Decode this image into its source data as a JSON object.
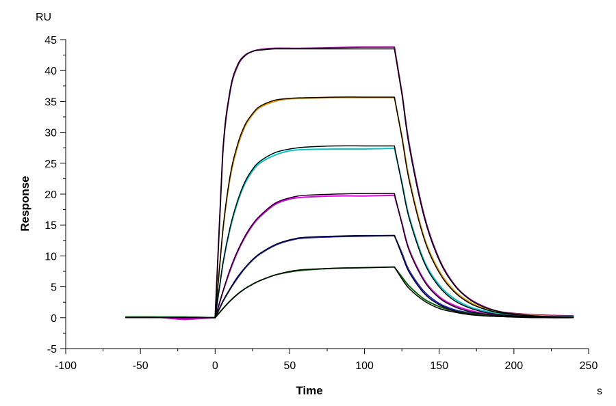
{
  "chart_data": {
    "type": "line",
    "xlabel": "Time",
    "ylabel": "Response",
    "x_unit": "s",
    "y_unit": "RU",
    "xlim": [
      -100,
      250
    ],
    "ylim": [
      -5,
      45
    ],
    "x_ticks": [
      -100,
      -50,
      0,
      50,
      100,
      150,
      200,
      250
    ],
    "y_ticks": [
      -5,
      0,
      5,
      10,
      15,
      20,
      25,
      30,
      35,
      40,
      45
    ],
    "x_tick_labels": [
      "-100",
      "-50",
      "0",
      "50",
      "100",
      "150",
      "200",
      "250"
    ],
    "y_tick_labels": [
      "-5",
      "0",
      "5",
      "10",
      "15",
      "20",
      "25",
      "30",
      "35",
      "40",
      "45"
    ],
    "grid": false,
    "legend": "none",
    "x": [
      -60,
      -40,
      -20,
      0,
      5,
      10,
      15,
      20,
      25,
      30,
      40,
      50,
      60,
      80,
      100,
      120,
      125,
      130,
      140,
      150,
      160,
      170,
      180,
      190,
      200,
      220,
      240
    ],
    "series": [
      {
        "color": "#8b008b",
        "values": [
          0.1,
          0.1,
          -0.2,
          0,
          26,
          36.5,
          40.7,
          42.4,
          43.1,
          43.4,
          43.6,
          43.6,
          43.6,
          43.7,
          43.8,
          43.8,
          36.5,
          28,
          16.5,
          9.5,
          5.4,
          3.1,
          1.8,
          1.0,
          0.7,
          0.4,
          0.3
        ]
      },
      {
        "color": "#e6a000",
        "values": [
          0.1,
          0.1,
          0.1,
          0,
          13.5,
          22.5,
          27.6,
          30.9,
          32.8,
          34.0,
          35.0,
          35.4,
          35.5,
          35.6,
          35.6,
          35.6,
          29.5,
          22.5,
          13.0,
          7.6,
          4.4,
          2.6,
          1.5,
          0.9,
          0.6,
          0.3,
          0.2
        ]
      },
      {
        "color": "#00c8c8",
        "values": [
          0.1,
          0.1,
          0.1,
          0,
          8.3,
          14.3,
          18.6,
          21.7,
          23.7,
          25.0,
          26.3,
          27.0,
          27.2,
          27.3,
          27.3,
          27.4,
          22.0,
          16.3,
          9.2,
          5.3,
          3.1,
          1.8,
          1.1,
          0.7,
          0.4,
          0.2,
          0.2
        ]
      },
      {
        "color": "#e600e6",
        "values": [
          0.1,
          0.1,
          -0.3,
          0,
          4.0,
          7.6,
          10.6,
          13.0,
          14.9,
          16.3,
          18.3,
          19.2,
          19.5,
          19.7,
          19.7,
          19.8,
          15.4,
          11.0,
          6.1,
          3.4,
          2.0,
          1.2,
          0.7,
          0.4,
          0.3,
          0.2,
          0.1
        ]
      },
      {
        "color": "#2020c8",
        "values": [
          0.1,
          0.1,
          0.1,
          0,
          2.5,
          4.6,
          6.4,
          8.0,
          9.3,
          10.3,
          11.7,
          12.5,
          12.9,
          13.1,
          13.2,
          13.3,
          10.5,
          7.6,
          4.2,
          2.3,
          1.3,
          0.8,
          0.5,
          0.3,
          0.2,
          0.1,
          0.1
        ]
      },
      {
        "color": "#006400",
        "values": [
          0.1,
          0.1,
          0.1,
          0,
          1.4,
          2.7,
          3.8,
          4.7,
          5.4,
          6.0,
          6.9,
          7.4,
          7.7,
          8.0,
          8.1,
          8.2,
          6.6,
          5.1,
          3.0,
          1.8,
          1.1,
          0.7,
          0.4,
          0.3,
          0.2,
          0.1,
          0.1
        ]
      }
    ],
    "fits": [
      [
        0,
        0,
        0,
        0,
        26.4,
        36.8,
        40.9,
        42.5,
        43.1,
        43.3,
        43.5,
        43.5,
        43.5,
        43.5,
        43.5,
        43.5,
        36.2,
        27.6,
        16.2,
        9.3,
        5.3,
        3.0,
        1.7,
        1.0,
        0.6,
        0.2,
        0.1
      ],
      [
        0,
        0,
        0,
        0,
        13.8,
        22.9,
        28.0,
        31.2,
        33.0,
        34.2,
        35.2,
        35.5,
        35.6,
        35.7,
        35.7,
        35.7,
        29.2,
        22.1,
        12.7,
        7.3,
        4.2,
        2.4,
        1.4,
        0.8,
        0.5,
        0.2,
        0.1
      ],
      [
        0,
        0,
        0,
        0,
        8.5,
        14.6,
        18.9,
        22.0,
        24.0,
        25.3,
        26.7,
        27.3,
        27.6,
        27.8,
        27.8,
        27.8,
        21.7,
        16.0,
        8.9,
        5.0,
        2.8,
        1.6,
        0.9,
        0.5,
        0.3,
        0.1,
        0.1
      ],
      [
        0,
        0,
        0,
        0,
        4.1,
        7.8,
        10.8,
        13.2,
        15.1,
        16.5,
        18.5,
        19.4,
        19.8,
        20.0,
        20.1,
        20.1,
        15.2,
        10.8,
        5.9,
        3.2,
        1.8,
        1.0,
        0.6,
        0.3,
        0.2,
        0.1,
        0.0
      ],
      [
        0,
        0,
        0,
        0,
        2.6,
        4.7,
        6.6,
        8.1,
        9.4,
        10.4,
        11.8,
        12.6,
        13.0,
        13.2,
        13.3,
        13.3,
        10.2,
        7.3,
        3.9,
        2.1,
        1.1,
        0.6,
        0.3,
        0.2,
        0.1,
        0.0,
        0.0
      ],
      [
        0,
        0,
        0,
        0,
        1.4,
        2.7,
        3.8,
        4.7,
        5.4,
        6.0,
        6.9,
        7.5,
        7.8,
        8.0,
        8.1,
        8.2,
        6.3,
        4.7,
        2.7,
        1.5,
        0.9,
        0.5,
        0.3,
        0.2,
        0.1,
        0.0,
        0.0
      ]
    ],
    "fit_color": "#000000"
  }
}
